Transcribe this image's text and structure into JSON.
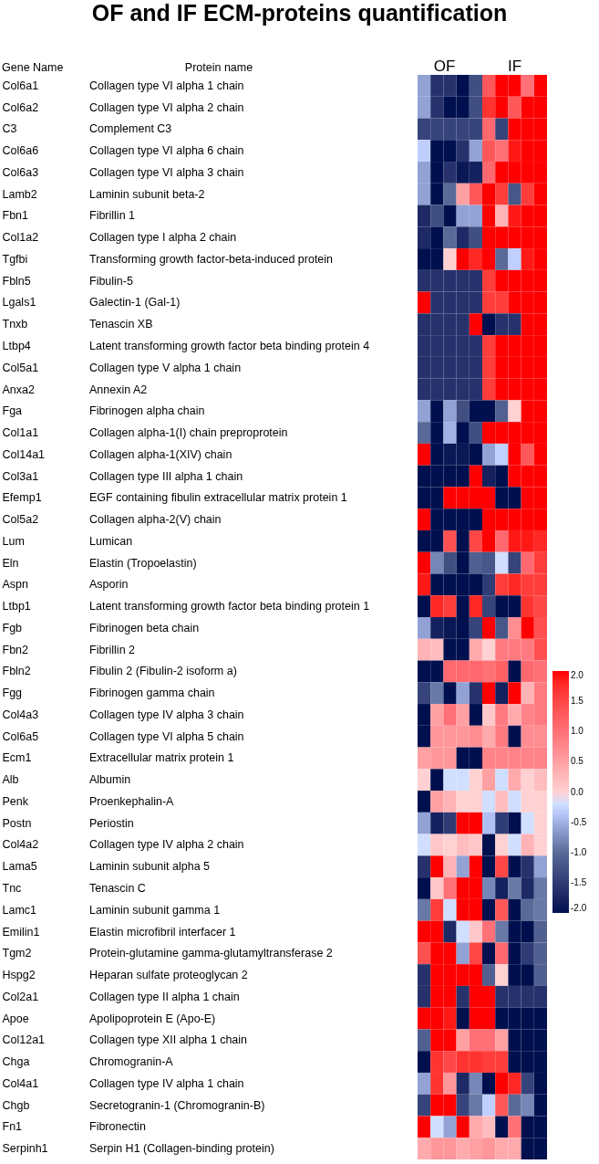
{
  "chart_data": {
    "type": "heatmap",
    "title": "OF and IF ECM-proteins quantification",
    "ylabel": "Gene Name",
    "y2label": "Protein name",
    "annotations": [
      "OF",
      "IF"
    ],
    "categories": [
      null,
      null,
      null,
      null,
      null,
      null,
      null,
      null,
      null,
      null
    ],
    "y_categories": [
      "Col6a1",
      "Col6a2",
      "C3",
      "Col6a6",
      "Col6a3",
      "Lamb2",
      "Fbn1",
      "Col1a2",
      "Tgfbi",
      "Fbln5",
      "Lgals1",
      "Tnxb",
      "Ltbp4",
      "Col5a1",
      "Anxa2",
      "Fga",
      "Col1a1",
      "Col14a1",
      "Col3a1",
      "Efemp1",
      "Col5a2",
      "Lum",
      "Eln",
      "Aspn",
      "Ltbp1",
      "Fgb",
      "Fbn2",
      "Fbln2",
      "Fgg",
      "Col4a3",
      "Col6a5",
      "Ecm1",
      "Alb",
      "Penk",
      "Postn",
      "Col4a2",
      "Lama5",
      "Tnc",
      "Lamc1",
      "Emilin1",
      "Tgm2",
      "Hspg2",
      "Col2a1",
      "Apoe",
      "Col12a1",
      "Chga",
      "Col4a1",
      "Chgb",
      "Fn1",
      "Serpinh1"
    ],
    "y2_categories": [
      "Collagen type VI alpha 1 chain",
      "Collagen type VI alpha 2 chain",
      "Complement C3",
      "Collagen type VI alpha 6 chain",
      "Collagen type VI alpha 3 chain",
      "Laminin subunit beta-2",
      "Fibrillin 1",
      "Collagen type I alpha 2 chain",
      "Transforming growth factor-beta-induced protein",
      "Fibulin-5",
      "Galectin-1 (Gal-1)",
      "Tenascin XB",
      "Latent transforming growth factor beta binding protein 4",
      "Collagen type V alpha 1 chain",
      "Annexin A2",
      "Fibrinogen alpha chain",
      "Collagen alpha-1(I) chain preproprotein",
      "Collagen alpha-1(XIV) chain",
      "Collagen type III alpha 1 chain",
      "EGF containing fibulin extracellular matrix protein 1",
      "Collagen alpha-2(V) chain",
      "Lumican",
      "Elastin (Tropoelastin)",
      "Asporin",
      "Latent transforming growth factor beta binding protein 1",
      "Fibrinogen beta chain",
      "Fibrillin 2",
      "Fibulin 2 (Fibulin-2 isoform a)",
      "Fibrinogen gamma chain",
      "Collagen type IV alpha 3 chain",
      "Collagen type VI alpha 5 chain",
      "Extracellular matrix protein 1",
      "Albumin",
      "Proenkephalin-A",
      "Periostin",
      "Collagen type IV alpha 2 chain",
      "Laminin subunit alpha 5",
      "Tenascin C",
      "Laminin subunit gamma 1",
      "Elastin microfibril interfacer 1",
      "Protein-glutamine gamma-glutamyltransferase 2",
      "Heparan sulfate proteoglycan 2",
      "Collagen type II alpha 1 chain",
      "Apolipoprotein E (Apo-E)",
      "Collagen type XII alpha 1 chain",
      "Chromogranin-A",
      "Collagen type IV alpha 1 chain",
      "Secretogranin-1 (Chromogranin-B)",
      "Fibronectin",
      "Serpin H1 (Collagen-binding protein)"
    ],
    "cells": [
      [
        -0.6,
        -1.6,
        -1.6,
        -2,
        -1.3,
        1.3,
        2,
        2,
        1,
        2
      ],
      [
        -0.6,
        -1.6,
        -2,
        -2,
        -1.3,
        1.7,
        2,
        1.3,
        2,
        2
      ],
      [
        -1.4,
        -1.4,
        -1.4,
        -1.4,
        -1.4,
        1.1,
        -1.4,
        2,
        2,
        2
      ],
      [
        -0.3,
        -2,
        -2,
        -1.6,
        -0.6,
        1.3,
        1,
        1.9,
        2,
        2
      ],
      [
        -0.6,
        -2,
        -1.6,
        -1.9,
        -1.8,
        1.1,
        2,
        2,
        2,
        2
      ],
      [
        -0.6,
        -2,
        -1,
        0.5,
        1.3,
        2,
        1.6,
        -1.2,
        1.6,
        2
      ],
      [
        -1.7,
        -1.3,
        -2,
        -0.6,
        -0.6,
        2,
        0.3,
        1.9,
        2,
        2
      ],
      [
        -1.7,
        -2,
        -1,
        -1.7,
        -1.3,
        2,
        2,
        2,
        2,
        2
      ],
      [
        -2,
        -2,
        0,
        2,
        1.8,
        2,
        -1,
        -0.3,
        1.9,
        2
      ],
      [
        -1.6,
        -1.6,
        -1.6,
        -1.6,
        -1.6,
        1.6,
        2,
        2,
        2,
        2
      ],
      [
        2,
        -1.6,
        -1.6,
        -1.6,
        -1.6,
        1.6,
        1.6,
        2,
        2,
        2
      ],
      [
        -1.6,
        -1.6,
        -1.6,
        -1.6,
        2,
        -2,
        -1.6,
        -1.6,
        2,
        2
      ],
      [
        -1.6,
        -1.6,
        -1.6,
        -1.6,
        -1.6,
        1.6,
        2,
        2,
        2,
        2
      ],
      [
        -1.6,
        -1.6,
        -1.6,
        -1.6,
        -1.6,
        1.6,
        2,
        2,
        2,
        2
      ],
      [
        -1.6,
        -1.6,
        -1.6,
        -1.6,
        -1.6,
        1.6,
        2,
        2,
        2,
        2
      ],
      [
        -0.6,
        -2,
        -0.6,
        -1.3,
        -2,
        -2,
        -1.1,
        0,
        2,
        2
      ],
      [
        -1,
        -2,
        -0.5,
        -2,
        -1.3,
        2,
        2,
        2,
        2,
        2
      ],
      [
        2,
        -2,
        -1.9,
        -1.9,
        -2,
        -0.6,
        -0.3,
        2,
        1.3,
        2
      ],
      [
        -2,
        -2,
        -2,
        -2,
        2,
        -1.8,
        -2,
        2,
        2,
        2
      ],
      [
        -2,
        -2,
        2,
        2,
        2,
        2,
        -2,
        -2,
        2,
        2
      ],
      [
        2,
        -2,
        -2,
        -2,
        -2,
        2,
        2,
        2,
        2,
        2
      ],
      [
        -2,
        -2,
        1.4,
        -2,
        1.5,
        2,
        1.1,
        1.9,
        1.9,
        1.8
      ],
      [
        2,
        -0.8,
        -1.3,
        -2,
        -1.1,
        -1.2,
        -0.2,
        -1.4,
        1.1,
        1.6
      ],
      [
        1.9,
        -2,
        -2,
        -2,
        -2,
        -1.5,
        1.6,
        1.8,
        1.6,
        1.6
      ],
      [
        -2,
        1.8,
        1.6,
        -2,
        1.8,
        -1.4,
        -2,
        -2,
        1.7,
        1.5
      ],
      [
        -0.6,
        -1.8,
        -1.9,
        -2,
        -1.4,
        2,
        -1.2,
        0.7,
        2,
        1.4
      ],
      [
        0.3,
        0.2,
        -2,
        -2,
        0.4,
        0,
        0.9,
        0.9,
        0.9,
        1.4
      ],
      [
        -2,
        -2,
        1.1,
        1.1,
        1.1,
        1,
        1.2,
        -2,
        1.1,
        1
      ],
      [
        -1.4,
        -0.9,
        -2,
        -0.6,
        -1.6,
        2,
        -1.8,
        2,
        0.3,
        0.9
      ],
      [
        -2,
        0.5,
        1,
        0.5,
        -2,
        0.1,
        0.9,
        0.4,
        0.8,
        0.9
      ],
      [
        -2,
        0.6,
        0.6,
        0.6,
        0.7,
        0.4,
        0.9,
        -2,
        0.7,
        0.7
      ],
      [
        0.5,
        0.6,
        0.6,
        -2,
        -2,
        0.8,
        0.8,
        0.8,
        0.8,
        0.8
      ],
      [
        0,
        -2,
        -0.2,
        -0.2,
        0,
        0.5,
        -0.2,
        0.4,
        0,
        0.2
      ],
      [
        -2,
        0.5,
        0.3,
        0,
        0,
        -0.2,
        0.2,
        -0.2,
        0,
        0
      ],
      [
        -0.6,
        -1.8,
        -1.5,
        2,
        2,
        -0.4,
        -1.5,
        -2,
        -0.2,
        0
      ],
      [
        -0.2,
        0.1,
        0,
        0.2,
        0.1,
        -2,
        0,
        -0.2,
        0.3,
        0
      ],
      [
        -1.6,
        2,
        0.3,
        -0.6,
        2,
        -2,
        1.5,
        -2,
        -1.6,
        -0.6
      ],
      [
        -2,
        0.1,
        1,
        2,
        2,
        -0.8,
        -1.8,
        -0.9,
        -1.7,
        -0.9
      ],
      [
        -0.9,
        1.6,
        -0.2,
        2,
        2,
        -2,
        1.3,
        -2,
        -1,
        -0.9
      ],
      [
        2,
        2,
        -1.7,
        -0.2,
        0.1,
        1,
        -0.9,
        -2,
        -2,
        -1.1
      ],
      [
        1.4,
        2,
        2,
        -0.6,
        1.5,
        -2,
        1.1,
        -2,
        -1.5,
        -1.1
      ],
      [
        -1.6,
        2,
        2,
        2,
        2,
        -1.1,
        0,
        -2,
        -2,
        -1.1
      ],
      [
        -1.6,
        2,
        2,
        -1.6,
        2,
        2,
        -1.6,
        -1.6,
        -1.6,
        -1.6
      ],
      [
        2,
        2,
        1.9,
        -2,
        2,
        2,
        -2,
        -2,
        -2,
        -2
      ],
      [
        -1.1,
        2,
        2,
        0.5,
        1,
        1,
        0.5,
        -2,
        -2,
        -2
      ],
      [
        -2,
        1.7,
        1.5,
        1.7,
        1.7,
        1.6,
        1.6,
        -2,
        -2,
        -2
      ],
      [
        -0.6,
        1.7,
        0.6,
        -1.7,
        -0.8,
        -2,
        2,
        1.8,
        -1.4,
        -2
      ],
      [
        -1.4,
        2,
        2,
        -1.4,
        -0.9,
        -0.3,
        1.3,
        -1,
        -0.8,
        -2
      ],
      [
        2,
        -0.2,
        -0.6,
        2,
        0.4,
        0.2,
        -2,
        1,
        -2,
        -2
      ],
      [
        0.4,
        0.6,
        0.6,
        0.4,
        0.5,
        0.6,
        0.4,
        0.4,
        -2,
        -2
      ]
    ],
    "clim": [
      -2,
      2
    ],
    "cticks": [
      {
        "value": 2,
        "label": "2.0"
      },
      {
        "value": 1.5,
        "label": "1.5"
      },
      {
        "value": 1,
        "label": "1.0"
      },
      {
        "value": 0.5,
        "label": "0.5"
      },
      {
        "value": 0,
        "label": "0.0"
      },
      {
        "value": -0.5,
        "label": "-0.5"
      },
      {
        "value": -1,
        "label": "-1.0"
      },
      {
        "value": -1.5,
        "label": "-1.5"
      },
      {
        "value": -2,
        "label": "-2.0"
      }
    ]
  }
}
